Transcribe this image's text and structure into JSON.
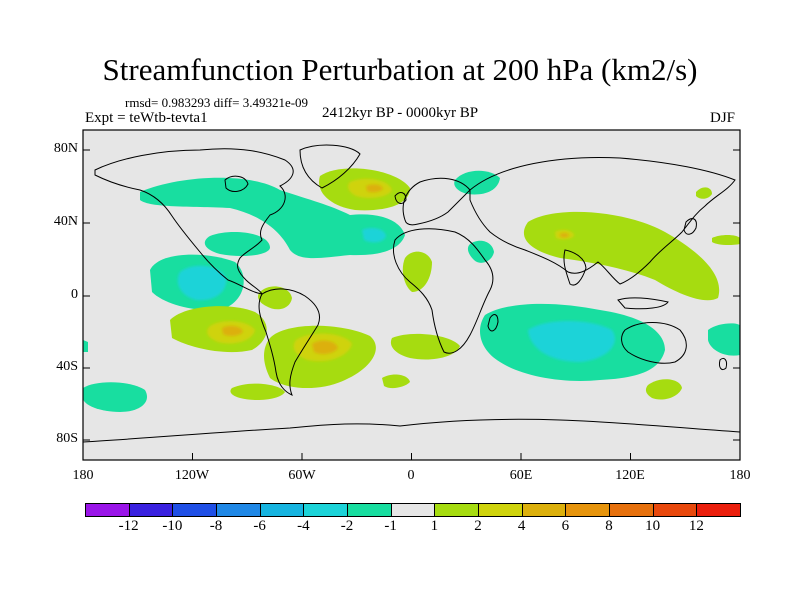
{
  "title": "Streamfunction Perturbation at 200 hPa (km2/s)",
  "stats": "rmsd= 0.983293 diff= 3.49321e-09",
  "expt": "Expt = teWtb-tevta1",
  "period": "2412kyr BP - 0000kyr BP",
  "season": "DJF",
  "y_axis": [
    "80N",
    "40N",
    "0",
    "40S",
    "80S"
  ],
  "x_axis": [
    "180",
    "120W",
    "60W",
    "0",
    "60E",
    "120E",
    "180"
  ],
  "colorbar": {
    "labels": [
      "-12",
      "-10",
      "-8",
      "-6",
      "-4",
      "-2",
      "-1",
      "1",
      "2",
      "4",
      "6",
      "8",
      "10",
      "12"
    ],
    "colors": [
      "#9a15e8",
      "#3a22e0",
      "#1f4fe6",
      "#1f88e6",
      "#16b4e0",
      "#1cd3d8",
      "#18dea0",
      "#e6e6e6",
      "#a6dc10",
      "#cfd30c",
      "#dcb00c",
      "#e6940c",
      "#e6700c",
      "#e8480c",
      "#ea1e0c"
    ]
  },
  "colors": {
    "neutral": "#e6e6e6",
    "pos_light": "#a6dc10",
    "pos_mid": "#cfd30c",
    "pos_high": "#dcb00c",
    "neg_light": "#18dea0",
    "neg_mid": "#1cd3d8"
  }
}
